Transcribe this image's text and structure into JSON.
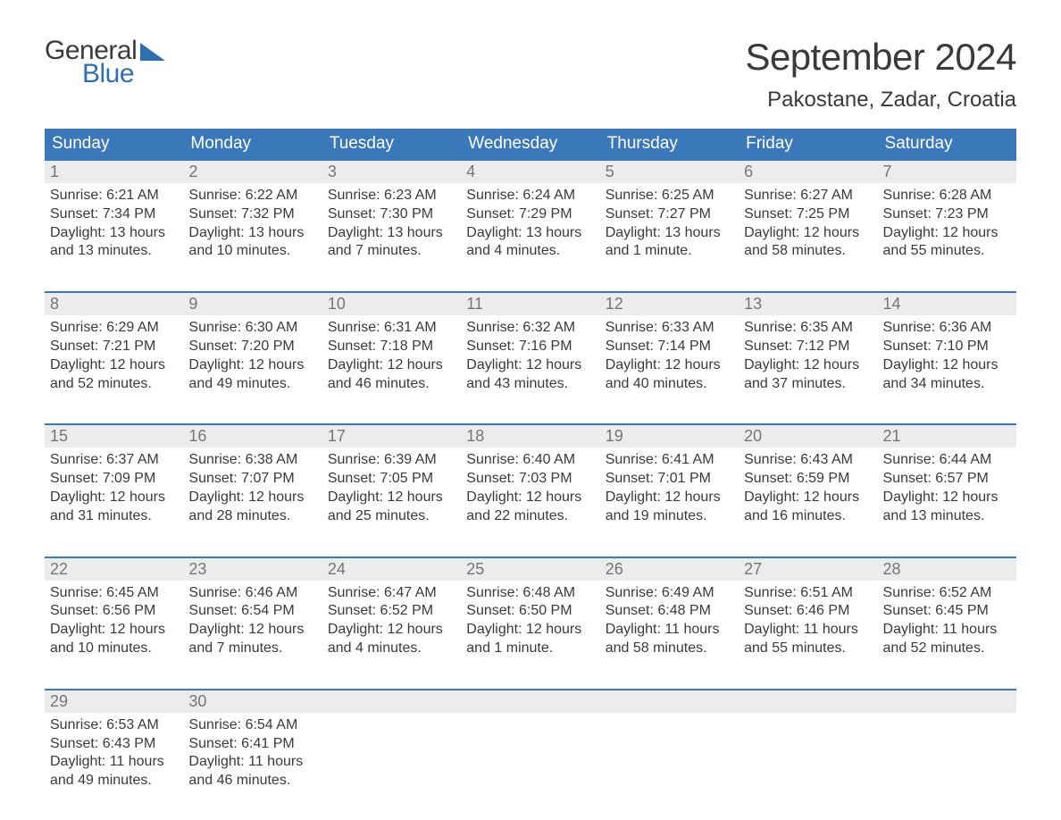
{
  "logo": {
    "line1": "General",
    "line2": "Blue"
  },
  "title": "September 2024",
  "location": "Pakostane, Zadar, Croatia",
  "colors": {
    "header_bg": "#3b78b9",
    "header_text": "#ffffff",
    "daynum_bg": "#ececec",
    "daynum_text": "#757575",
    "body_text": "#3a3a3a",
    "logo_blue": "#2f6fb0",
    "week_border": "#3b78b9"
  },
  "day_labels": [
    "Sunday",
    "Monday",
    "Tuesday",
    "Wednesday",
    "Thursday",
    "Friday",
    "Saturday"
  ],
  "labels": {
    "sunrise": "Sunrise: ",
    "sunset": "Sunset: ",
    "daylight": "Daylight: "
  },
  "weeks": [
    [
      {
        "n": "1",
        "sunrise": "6:21 AM",
        "sunset": "7:34 PM",
        "daylight1": "13 hours",
        "daylight2": "and 13 minutes."
      },
      {
        "n": "2",
        "sunrise": "6:22 AM",
        "sunset": "7:32 PM",
        "daylight1": "13 hours",
        "daylight2": "and 10 minutes."
      },
      {
        "n": "3",
        "sunrise": "6:23 AM",
        "sunset": "7:30 PM",
        "daylight1": "13 hours",
        "daylight2": "and 7 minutes."
      },
      {
        "n": "4",
        "sunrise": "6:24 AM",
        "sunset": "7:29 PM",
        "daylight1": "13 hours",
        "daylight2": "and 4 minutes."
      },
      {
        "n": "5",
        "sunrise": "6:25 AM",
        "sunset": "7:27 PM",
        "daylight1": "13 hours",
        "daylight2": "and 1 minute."
      },
      {
        "n": "6",
        "sunrise": "6:27 AM",
        "sunset": "7:25 PM",
        "daylight1": "12 hours",
        "daylight2": "and 58 minutes."
      },
      {
        "n": "7",
        "sunrise": "6:28 AM",
        "sunset": "7:23 PM",
        "daylight1": "12 hours",
        "daylight2": "and 55 minutes."
      }
    ],
    [
      {
        "n": "8",
        "sunrise": "6:29 AM",
        "sunset": "7:21 PM",
        "daylight1": "12 hours",
        "daylight2": "and 52 minutes."
      },
      {
        "n": "9",
        "sunrise": "6:30 AM",
        "sunset": "7:20 PM",
        "daylight1": "12 hours",
        "daylight2": "and 49 minutes."
      },
      {
        "n": "10",
        "sunrise": "6:31 AM",
        "sunset": "7:18 PM",
        "daylight1": "12 hours",
        "daylight2": "and 46 minutes."
      },
      {
        "n": "11",
        "sunrise": "6:32 AM",
        "sunset": "7:16 PM",
        "daylight1": "12 hours",
        "daylight2": "and 43 minutes."
      },
      {
        "n": "12",
        "sunrise": "6:33 AM",
        "sunset": "7:14 PM",
        "daylight1": "12 hours",
        "daylight2": "and 40 minutes."
      },
      {
        "n": "13",
        "sunrise": "6:35 AM",
        "sunset": "7:12 PM",
        "daylight1": "12 hours",
        "daylight2": "and 37 minutes."
      },
      {
        "n": "14",
        "sunrise": "6:36 AM",
        "sunset": "7:10 PM",
        "daylight1": "12 hours",
        "daylight2": "and 34 minutes."
      }
    ],
    [
      {
        "n": "15",
        "sunrise": "6:37 AM",
        "sunset": "7:09 PM",
        "daylight1": "12 hours",
        "daylight2": "and 31 minutes."
      },
      {
        "n": "16",
        "sunrise": "6:38 AM",
        "sunset": "7:07 PM",
        "daylight1": "12 hours",
        "daylight2": "and 28 minutes."
      },
      {
        "n": "17",
        "sunrise": "6:39 AM",
        "sunset": "7:05 PM",
        "daylight1": "12 hours",
        "daylight2": "and 25 minutes."
      },
      {
        "n": "18",
        "sunrise": "6:40 AM",
        "sunset": "7:03 PM",
        "daylight1": "12 hours",
        "daylight2": "and 22 minutes."
      },
      {
        "n": "19",
        "sunrise": "6:41 AM",
        "sunset": "7:01 PM",
        "daylight1": "12 hours",
        "daylight2": "and 19 minutes."
      },
      {
        "n": "20",
        "sunrise": "6:43 AM",
        "sunset": "6:59 PM",
        "daylight1": "12 hours",
        "daylight2": "and 16 minutes."
      },
      {
        "n": "21",
        "sunrise": "6:44 AM",
        "sunset": "6:57 PM",
        "daylight1": "12 hours",
        "daylight2": "and 13 minutes."
      }
    ],
    [
      {
        "n": "22",
        "sunrise": "6:45 AM",
        "sunset": "6:56 PM",
        "daylight1": "12 hours",
        "daylight2": "and 10 minutes."
      },
      {
        "n": "23",
        "sunrise": "6:46 AM",
        "sunset": "6:54 PM",
        "daylight1": "12 hours",
        "daylight2": "and 7 minutes."
      },
      {
        "n": "24",
        "sunrise": "6:47 AM",
        "sunset": "6:52 PM",
        "daylight1": "12 hours",
        "daylight2": "and 4 minutes."
      },
      {
        "n": "25",
        "sunrise": "6:48 AM",
        "sunset": "6:50 PM",
        "daylight1": "12 hours",
        "daylight2": "and 1 minute."
      },
      {
        "n": "26",
        "sunrise": "6:49 AM",
        "sunset": "6:48 PM",
        "daylight1": "11 hours",
        "daylight2": "and 58 minutes."
      },
      {
        "n": "27",
        "sunrise": "6:51 AM",
        "sunset": "6:46 PM",
        "daylight1": "11 hours",
        "daylight2": "and 55 minutes."
      },
      {
        "n": "28",
        "sunrise": "6:52 AM",
        "sunset": "6:45 PM",
        "daylight1": "11 hours",
        "daylight2": "and 52 minutes."
      }
    ],
    [
      {
        "n": "29",
        "sunrise": "6:53 AM",
        "sunset": "6:43 PM",
        "daylight1": "11 hours",
        "daylight2": "and 49 minutes."
      },
      {
        "n": "30",
        "sunrise": "6:54 AM",
        "sunset": "6:41 PM",
        "daylight1": "11 hours",
        "daylight2": "and 46 minutes."
      },
      {
        "empty": true
      },
      {
        "empty": true
      },
      {
        "empty": true
      },
      {
        "empty": true
      },
      {
        "empty": true
      }
    ]
  ]
}
